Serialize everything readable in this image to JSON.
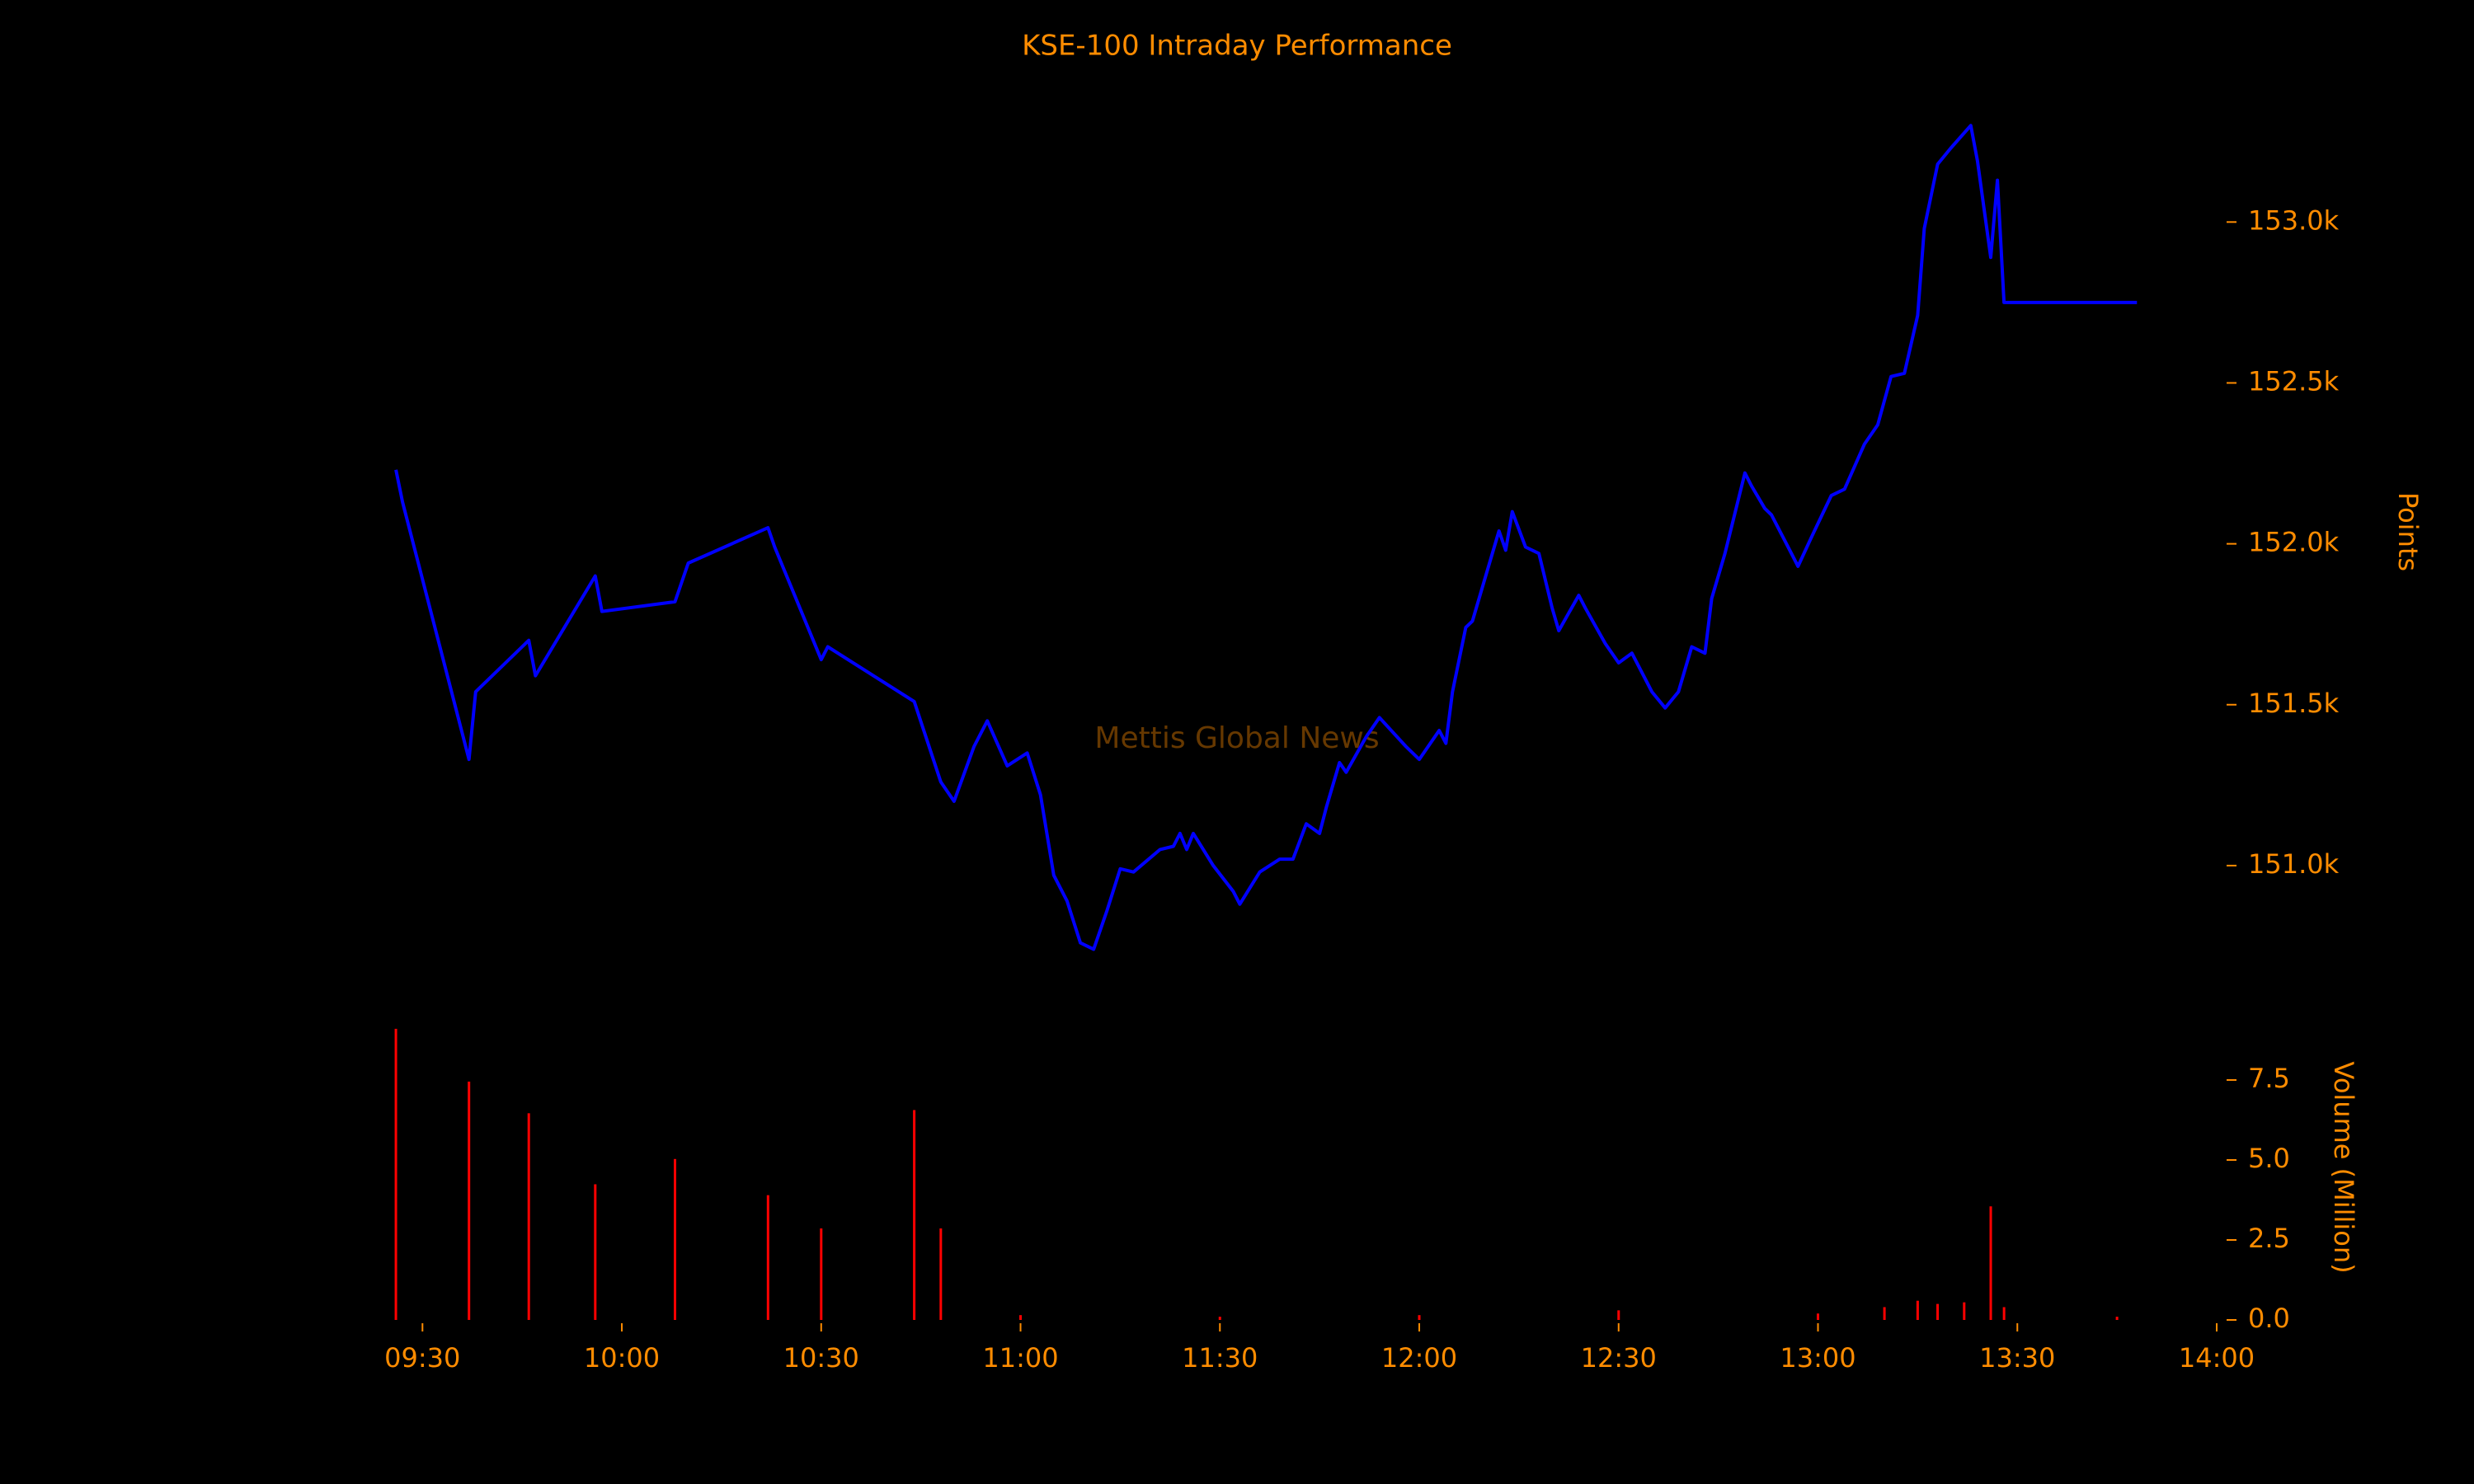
{
  "chart_data": [
    {
      "type": "line",
      "title": "KSE-100 Intraday Performance",
      "watermark": "Mettis Global News",
      "ylabel": "Points",
      "xlim": [
        "09:25",
        "14:00"
      ],
      "ylim": [
        150700,
        153380
      ],
      "yticks": [
        {
          "value": 151000,
          "label": "151.0k"
        },
        {
          "value": 151500,
          "label": "151.5k"
        },
        {
          "value": 152000,
          "label": "152.0k"
        },
        {
          "value": 152500,
          "label": "152.5k"
        },
        {
          "value": 153000,
          "label": "153.0k"
        }
      ],
      "x": [
        "09:26",
        "09:27",
        "09:37",
        "09:38",
        "09:46",
        "09:47",
        "09:56",
        "09:57",
        "10:08",
        "10:10",
        "10:22",
        "10:23",
        "10:30",
        "10:31",
        "10:44",
        "10:48",
        "10:50",
        "10:53",
        "10:55",
        "10:58",
        "11:01",
        "11:03",
        "11:05",
        "11:07",
        "11:09",
        "11:11",
        "11:13",
        "11:15",
        "11:17",
        "11:21",
        "11:23",
        "11:24",
        "11:25",
        "11:26",
        "11:29",
        "11:32",
        "11:33",
        "11:36",
        "11:39",
        "11:41",
        "11:43",
        "11:45",
        "11:46",
        "11:48",
        "11:49",
        "11:52",
        "11:54",
        "11:58",
        "12:00",
        "12:03",
        "12:04",
        "12:05",
        "12:07",
        "12:08",
        "12:10",
        "12:12",
        "12:13",
        "12:14",
        "12:16",
        "12:18",
        "12:20",
        "12:21",
        "12:24",
        "12:25",
        "12:28",
        "12:30",
        "12:32",
        "12:35",
        "12:37",
        "12:39",
        "12:41",
        "12:43",
        "12:44",
        "12:46",
        "12:49",
        "12:50",
        "12:52",
        "12:53",
        "12:56",
        "12:57",
        "12:59",
        "13:02",
        "13:04",
        "13:07",
        "13:09",
        "13:11",
        "13:13",
        "13:15",
        "13:16",
        "13:18",
        "13:20",
        "13:23",
        "13:24",
        "13:26",
        "13:27",
        "13:28",
        "13:48"
      ],
      "series": [
        {
          "color": "#0000ff",
          "values": [
            152230,
            152130,
            151330,
            151540,
            151700,
            151590,
            151900,
            151790,
            151820,
            151940,
            152050,
            151990,
            151640,
            151680,
            151510,
            151260,
            151200,
            151370,
            151450,
            151310,
            151350,
            151220,
            150970,
            150890,
            150760,
            150740,
            150860,
            150990,
            150980,
            151050,
            151060,
            151100,
            151050,
            151100,
            151000,
            150920,
            150880,
            150980,
            151020,
            151020,
            151130,
            151100,
            151180,
            151320,
            151290,
            151400,
            151460,
            151370,
            151330,
            151420,
            151380,
            151540,
            151740,
            151760,
            151900,
            152040,
            151980,
            152100,
            151990,
            151970,
            151800,
            151730,
            151840,
            151800,
            151690,
            151630,
            151660,
            151540,
            151490,
            151540,
            151680,
            151660,
            151830,
            151970,
            152220,
            152180,
            152110,
            152090,
            151970,
            151930,
            152020,
            152150,
            152170,
            152310,
            152370,
            152520,
            152530,
            152710,
            152980,
            153180,
            153230,
            153300,
            153190,
            152890,
            153130,
            152750,
            152750
          ]
        }
      ]
    },
    {
      "type": "bar",
      "ylabel": "Volume (Million)",
      "xlim": [
        "09:25",
        "14:00"
      ],
      "xticks": [
        "09:30",
        "10:00",
        "10:30",
        "11:00",
        "11:30",
        "12:00",
        "12:30",
        "13:00",
        "13:30",
        "14:00"
      ],
      "ylim": [
        0,
        9.2
      ],
      "yticks": [
        {
          "value": 0,
          "label": "0.0"
        },
        {
          "value": 2.5,
          "label": "2.5"
        },
        {
          "value": 5,
          "label": "5.0"
        },
        {
          "value": 7.5,
          "label": "7.5"
        }
      ],
      "x": [
        "09:26",
        "09:37",
        "09:46",
        "09:56",
        "10:08",
        "10:22",
        "10:30",
        "10:44",
        "10:48",
        "11:00",
        "11:30",
        "12:00",
        "12:30",
        "13:00",
        "13:10",
        "13:15",
        "13:18",
        "13:22",
        "13:26",
        "13:28",
        "13:45"
      ],
      "series": [
        {
          "color": "#ff0000",
          "values": [
            9.1,
            7.45,
            6.46,
            4.24,
            5.03,
            3.9,
            2.86,
            6.56,
            2.86,
            0.15,
            0.1,
            0.15,
            0.3,
            0.2,
            0.4,
            0.6,
            0.5,
            0.55,
            3.55,
            0.4,
            0.1
          ]
        }
      ]
    }
  ]
}
